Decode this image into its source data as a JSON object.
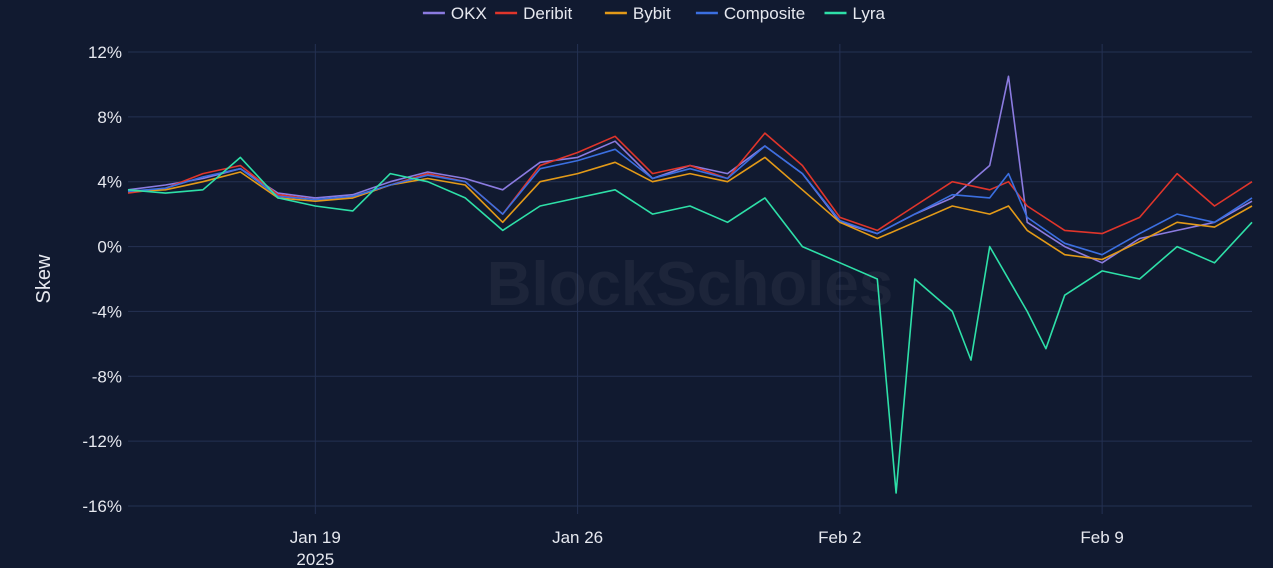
{
  "chart_data": {
    "type": "line",
    "title": "",
    "xlabel": "",
    "ylabel": "Skew",
    "x_range": [
      "2025-01-14",
      "2025-02-13"
    ],
    "ylim": [
      -0.16,
      0.12
    ],
    "y_ticks": [
      0.12,
      0.08,
      0.04,
      0.0,
      -0.04,
      -0.08,
      -0.12,
      -0.16
    ],
    "y_tick_labels": [
      "12%",
      "8%",
      "4%",
      "0%",
      "-4%",
      "-8%",
      "-12%",
      "-16%"
    ],
    "x_ticks": [
      "2025-01-19",
      "2025-01-26",
      "2025-02-02",
      "2025-02-09"
    ],
    "x_tick_labels": [
      "Jan 19",
      "Jan 26",
      "Feb 2",
      "Feb 9"
    ],
    "x_tick_sublabel": "2025",
    "grid": true,
    "legend_position": "top-center",
    "watermark": "BlockScholes",
    "colors": {
      "background": "#111a30",
      "grid": "#243152",
      "text": "#e6e8ef"
    },
    "series": [
      {
        "name": "OKX",
        "color": "#8b7be0",
        "points": [
          [
            "2025-01-14",
            0.035
          ],
          [
            "2025-01-15",
            0.038
          ],
          [
            "2025-01-16",
            0.042
          ],
          [
            "2025-01-17",
            0.048
          ],
          [
            "2025-01-18",
            0.033
          ],
          [
            "2025-01-19",
            0.03
          ],
          [
            "2025-01-20",
            0.032
          ],
          [
            "2025-01-21",
            0.04
          ],
          [
            "2025-01-22",
            0.046
          ],
          [
            "2025-01-23",
            0.042
          ],
          [
            "2025-01-24",
            0.035
          ],
          [
            "2025-01-25",
            0.052
          ],
          [
            "2025-01-26",
            0.055
          ],
          [
            "2025-01-27",
            0.065
          ],
          [
            "2025-01-28",
            0.042
          ],
          [
            "2025-01-29",
            0.05
          ],
          [
            "2025-01-30",
            0.045
          ],
          [
            "2025-01-31",
            0.062
          ],
          [
            "2025-02-01",
            0.045
          ],
          [
            "2025-02-02",
            0.015
          ],
          [
            "2025-02-03",
            0.008
          ],
          [
            "2025-02-04",
            0.02
          ],
          [
            "2025-02-05",
            0.03
          ],
          [
            "2025-02-06",
            0.05
          ],
          [
            "2025-02-06T12:00:00",
            0.105
          ],
          [
            "2025-02-07",
            0.015
          ],
          [
            "2025-02-08",
            0.0
          ],
          [
            "2025-02-09",
            -0.01
          ],
          [
            "2025-02-10",
            0.005
          ],
          [
            "2025-02-11",
            0.01
          ],
          [
            "2025-02-12",
            0.015
          ],
          [
            "2025-02-13",
            0.028
          ]
        ]
      },
      {
        "name": "Deribit",
        "color": "#e0352b",
        "points": [
          [
            "2025-01-14",
            0.033
          ],
          [
            "2025-01-15",
            0.036
          ],
          [
            "2025-01-16",
            0.045
          ],
          [
            "2025-01-17",
            0.05
          ],
          [
            "2025-01-18",
            0.032
          ],
          [
            "2025-01-19",
            0.029
          ],
          [
            "2025-01-20",
            0.03
          ],
          [
            "2025-01-21",
            0.038
          ],
          [
            "2025-01-22",
            0.045
          ],
          [
            "2025-01-23",
            0.04
          ],
          [
            "2025-01-24",
            0.02
          ],
          [
            "2025-01-25",
            0.05
          ],
          [
            "2025-01-26",
            0.058
          ],
          [
            "2025-01-27",
            0.068
          ],
          [
            "2025-01-28",
            0.045
          ],
          [
            "2025-01-29",
            0.05
          ],
          [
            "2025-01-30",
            0.042
          ],
          [
            "2025-01-31",
            0.07
          ],
          [
            "2025-02-01",
            0.05
          ],
          [
            "2025-02-02",
            0.018
          ],
          [
            "2025-02-03",
            0.01
          ],
          [
            "2025-02-04",
            0.025
          ],
          [
            "2025-02-05",
            0.04
          ],
          [
            "2025-02-06",
            0.035
          ],
          [
            "2025-02-06T12:00:00",
            0.04
          ],
          [
            "2025-02-07",
            0.025
          ],
          [
            "2025-02-08",
            0.01
          ],
          [
            "2025-02-09",
            0.008
          ],
          [
            "2025-02-10",
            0.018
          ],
          [
            "2025-02-11",
            0.045
          ],
          [
            "2025-02-12",
            0.025
          ],
          [
            "2025-02-13",
            0.04
          ]
        ]
      },
      {
        "name": "Bybit",
        "color": "#e39a18",
        "points": [
          [
            "2025-01-14",
            0.034
          ],
          [
            "2025-01-15",
            0.035
          ],
          [
            "2025-01-16",
            0.04
          ],
          [
            "2025-01-17",
            0.046
          ],
          [
            "2025-01-18",
            0.03
          ],
          [
            "2025-01-19",
            0.028
          ],
          [
            "2025-01-20",
            0.03
          ],
          [
            "2025-01-21",
            0.038
          ],
          [
            "2025-01-22",
            0.042
          ],
          [
            "2025-01-23",
            0.038
          ],
          [
            "2025-01-24",
            0.015
          ],
          [
            "2025-01-25",
            0.04
          ],
          [
            "2025-01-26",
            0.045
          ],
          [
            "2025-01-27",
            0.052
          ],
          [
            "2025-01-28",
            0.04
          ],
          [
            "2025-01-29",
            0.045
          ],
          [
            "2025-01-30",
            0.04
          ],
          [
            "2025-01-31",
            0.055
          ],
          [
            "2025-02-01",
            0.035
          ],
          [
            "2025-02-02",
            0.015
          ],
          [
            "2025-02-03",
            0.005
          ],
          [
            "2025-02-04",
            0.015
          ],
          [
            "2025-02-05",
            0.025
          ],
          [
            "2025-02-06",
            0.02
          ],
          [
            "2025-02-06T12:00:00",
            0.025
          ],
          [
            "2025-02-07",
            0.01
          ],
          [
            "2025-02-08",
            -0.005
          ],
          [
            "2025-02-09",
            -0.008
          ],
          [
            "2025-02-10",
            0.003
          ],
          [
            "2025-02-11",
            0.015
          ],
          [
            "2025-02-12",
            0.012
          ],
          [
            "2025-02-13",
            0.025
          ]
        ]
      },
      {
        "name": "Composite",
        "color": "#3b6fe0",
        "points": [
          [
            "2025-01-14",
            0.034
          ],
          [
            "2025-01-15",
            0.036
          ],
          [
            "2025-01-16",
            0.043
          ],
          [
            "2025-01-17",
            0.048
          ],
          [
            "2025-01-18",
            0.031
          ],
          [
            "2025-01-19",
            0.029
          ],
          [
            "2025-01-20",
            0.031
          ],
          [
            "2025-01-21",
            0.038
          ],
          [
            "2025-01-22",
            0.044
          ],
          [
            "2025-01-23",
            0.04
          ],
          [
            "2025-01-24",
            0.02
          ],
          [
            "2025-01-25",
            0.048
          ],
          [
            "2025-01-26",
            0.053
          ],
          [
            "2025-01-27",
            0.06
          ],
          [
            "2025-01-28",
            0.042
          ],
          [
            "2025-01-29",
            0.048
          ],
          [
            "2025-01-30",
            0.042
          ],
          [
            "2025-01-31",
            0.062
          ],
          [
            "2025-02-01",
            0.045
          ],
          [
            "2025-02-02",
            0.016
          ],
          [
            "2025-02-03",
            0.008
          ],
          [
            "2025-02-04",
            0.02
          ],
          [
            "2025-02-05",
            0.032
          ],
          [
            "2025-02-06",
            0.03
          ],
          [
            "2025-02-06T12:00:00",
            0.045
          ],
          [
            "2025-02-07",
            0.018
          ],
          [
            "2025-02-08",
            0.002
          ],
          [
            "2025-02-09",
            -0.005
          ],
          [
            "2025-02-10",
            0.008
          ],
          [
            "2025-02-11",
            0.02
          ],
          [
            "2025-02-12",
            0.015
          ],
          [
            "2025-02-13",
            0.03
          ]
        ]
      },
      {
        "name": "Lyra",
        "color": "#2ee0a8",
        "points": [
          [
            "2025-01-14",
            0.035
          ],
          [
            "2025-01-15",
            0.033
          ],
          [
            "2025-01-16",
            0.035
          ],
          [
            "2025-01-17",
            0.055
          ],
          [
            "2025-01-18",
            0.03
          ],
          [
            "2025-01-19",
            0.025
          ],
          [
            "2025-01-20",
            0.022
          ],
          [
            "2025-01-21",
            0.045
          ],
          [
            "2025-01-22",
            0.04
          ],
          [
            "2025-01-23",
            0.03
          ],
          [
            "2025-01-24",
            0.01
          ],
          [
            "2025-01-25",
            0.025
          ],
          [
            "2025-01-26",
            0.03
          ],
          [
            "2025-01-27",
            0.035
          ],
          [
            "2025-01-28",
            0.02
          ],
          [
            "2025-01-29",
            0.025
          ],
          [
            "2025-01-30",
            0.015
          ],
          [
            "2025-01-31",
            0.03
          ],
          [
            "2025-02-01",
            0.0
          ],
          [
            "2025-02-02",
            -0.01
          ],
          [
            "2025-02-03",
            -0.02
          ],
          [
            "2025-02-03T12:00:00",
            -0.152
          ],
          [
            "2025-02-04",
            -0.02
          ],
          [
            "2025-02-05",
            -0.04
          ],
          [
            "2025-02-05T12:00:00",
            -0.07
          ],
          [
            "2025-02-06",
            0.0
          ],
          [
            "2025-02-07",
            -0.04
          ],
          [
            "2025-02-07T12:00:00",
            -0.063
          ],
          [
            "2025-02-08",
            -0.03
          ],
          [
            "2025-02-09",
            -0.015
          ],
          [
            "2025-02-10",
            -0.02
          ],
          [
            "2025-02-11",
            0.0
          ],
          [
            "2025-02-12",
            -0.01
          ],
          [
            "2025-02-13",
            0.015
          ]
        ]
      }
    ]
  }
}
